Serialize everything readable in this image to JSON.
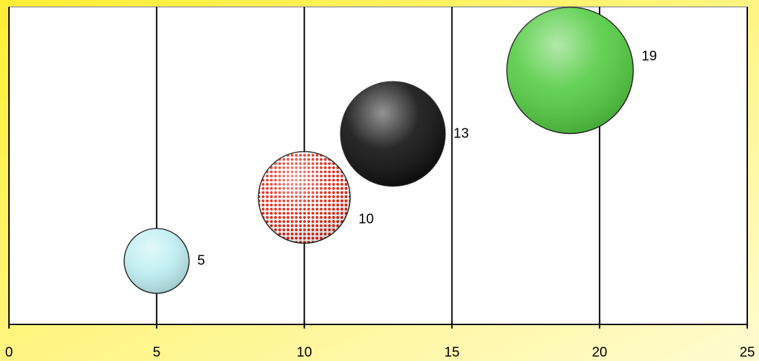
{
  "chart_data": {
    "type": "bubble",
    "x": [
      5,
      10,
      13,
      19
    ],
    "values": [
      1,
      2,
      3,
      4
    ],
    "sizes": [
      5,
      10,
      13,
      19
    ],
    "colors": [
      "#bfeff2",
      "#e03020",
      "#111111",
      "#55cc44"
    ],
    "xlim": [
      0,
      25
    ],
    "xticks": [
      0,
      5,
      10,
      15,
      20,
      25
    ],
    "ylim": [
      0,
      5
    ],
    "grid": true
  }
}
